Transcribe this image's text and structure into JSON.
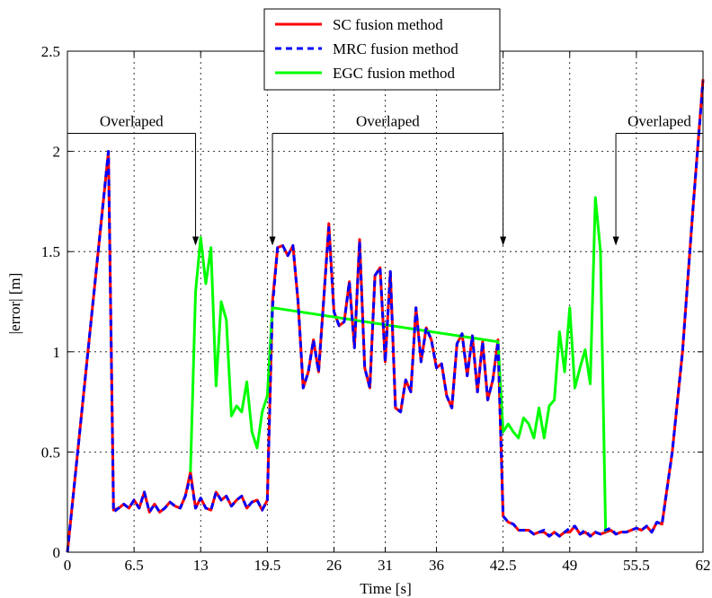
{
  "chart_data": {
    "type": "line",
    "xlabel": "Time [s]",
    "ylabel": "|error| [m]",
    "xlim": [
      0,
      62
    ],
    "ylim": [
      0,
      2.5
    ],
    "xticks": [
      0,
      6.5,
      13,
      19.5,
      26,
      31,
      36,
      42.5,
      49,
      55.5,
      62
    ],
    "xtick_labels": [
      "0",
      "6.5",
      "13",
      "19.5",
      "26",
      "31",
      "36",
      "42.5",
      "49",
      "55.5",
      "62"
    ],
    "yticks": [
      0,
      0.5,
      1,
      1.5,
      2,
      2.5
    ],
    "ytick_labels": [
      "0",
      "0.5",
      "1",
      "1.5",
      "2",
      "2.5"
    ],
    "grid": true,
    "legend_position": "top-center",
    "annotations": [
      {
        "text": "Overlaped",
        "x_start": 0,
        "x_end": 12.5,
        "y": 2.09,
        "arrow_tip_y": 1.53
      },
      {
        "text": "Overlaped",
        "x_start": 20,
        "x_end": 42.5,
        "y": 2.09,
        "arrow_tip_y": 1.53
      },
      {
        "text": "Overlaped",
        "x_start": 53.5,
        "x_end": 62,
        "y": 2.09,
        "arrow_tip_y": 1.53
      }
    ],
    "series": [
      {
        "name": "SC fusion method",
        "color": "#ff0000",
        "style": "solid",
        "points": [
          [
            0,
            0
          ],
          [
            4,
            2
          ],
          [
            4.5,
            0.21
          ],
          [
            5,
            0.22
          ],
          [
            5.5,
            0.24
          ],
          [
            6,
            0.22
          ],
          [
            6.5,
            0.26
          ],
          [
            7,
            0.22
          ],
          [
            7.5,
            0.3
          ],
          [
            8,
            0.2
          ],
          [
            8.5,
            0.24
          ],
          [
            9,
            0.2
          ],
          [
            9.5,
            0.22
          ],
          [
            10,
            0.25
          ],
          [
            10.5,
            0.23
          ],
          [
            11,
            0.22
          ],
          [
            11.5,
            0.28
          ],
          [
            12,
            0.4
          ],
          [
            12.5,
            0.22
          ],
          [
            13,
            0.27
          ],
          [
            13.5,
            0.22
          ],
          [
            14,
            0.21
          ],
          [
            14.5,
            0.3
          ],
          [
            15,
            0.26
          ],
          [
            15.5,
            0.28
          ],
          [
            16,
            0.23
          ],
          [
            16.5,
            0.26
          ],
          [
            17,
            0.28
          ],
          [
            17.5,
            0.22
          ],
          [
            18,
            0.25
          ],
          [
            18.5,
            0.26
          ],
          [
            19,
            0.21
          ],
          [
            19.5,
            0.26
          ],
          [
            20,
            1.25
          ],
          [
            20.5,
            1.52
          ],
          [
            21,
            1.53
          ],
          [
            21.5,
            1.48
          ],
          [
            22,
            1.53
          ],
          [
            22.5,
            1.25
          ],
          [
            23,
            0.82
          ],
          [
            23.5,
            0.9
          ],
          [
            24,
            1.06
          ],
          [
            24.5,
            0.9
          ],
          [
            25,
            1.26
          ],
          [
            25.5,
            1.64
          ],
          [
            26,
            1.2
          ],
          [
            26.5,
            1.13
          ],
          [
            27,
            1.15
          ],
          [
            27.5,
            1.35
          ],
          [
            28,
            1.02
          ],
          [
            28.5,
            1.56
          ],
          [
            29,
            0.92
          ],
          [
            29.5,
            0.82
          ],
          [
            30,
            1.38
          ],
          [
            30.5,
            1.42
          ],
          [
            31,
            0.95
          ],
          [
            31.5,
            1.4
          ],
          [
            32,
            0.72
          ],
          [
            32.5,
            0.7
          ],
          [
            33,
            0.86
          ],
          [
            33.5,
            0.8
          ],
          [
            34,
            1.22
          ],
          [
            34.5,
            0.95
          ],
          [
            35,
            1.12
          ],
          [
            35.5,
            1.06
          ],
          [
            36,
            0.92
          ],
          [
            36.5,
            0.94
          ],
          [
            37,
            0.78
          ],
          [
            37.5,
            0.72
          ],
          [
            38,
            1.04
          ],
          [
            38.5,
            1.09
          ],
          [
            39,
            0.88
          ],
          [
            39.5,
            1.08
          ],
          [
            40,
            0.8
          ],
          [
            40.5,
            1.05
          ],
          [
            41,
            0.76
          ],
          [
            41.5,
            0.86
          ],
          [
            42,
            1.06
          ],
          [
            42.5,
            0.18
          ],
          [
            43,
            0.15
          ],
          [
            43.5,
            0.14
          ],
          [
            44,
            0.11
          ],
          [
            44.5,
            0.11
          ],
          [
            45,
            0.11
          ],
          [
            45.5,
            0.09
          ],
          [
            46,
            0.1
          ],
          [
            46.5,
            0.1
          ],
          [
            47,
            0.08
          ],
          [
            47.5,
            0.1
          ],
          [
            48,
            0.08
          ],
          [
            48.5,
            0.1
          ],
          [
            49,
            0.1
          ],
          [
            49.5,
            0.13
          ],
          [
            50,
            0.09
          ],
          [
            50.5,
            0.1
          ],
          [
            51,
            0.08
          ],
          [
            51.5,
            0.1
          ],
          [
            52,
            0.09
          ],
          [
            52.5,
            0.1
          ],
          [
            53,
            0.11
          ],
          [
            53.5,
            0.09
          ],
          [
            54,
            0.1
          ],
          [
            54.5,
            0.1
          ],
          [
            55,
            0.11
          ],
          [
            55.5,
            0.12
          ],
          [
            56,
            0.11
          ],
          [
            56.5,
            0.13
          ],
          [
            57,
            0.1
          ],
          [
            57.5,
            0.15
          ],
          [
            58,
            0.14
          ],
          [
            59,
            0.5
          ],
          [
            60,
            1.0
          ],
          [
            61,
            1.7
          ],
          [
            62,
            2.36
          ]
        ]
      },
      {
        "name": "MRC fusion method",
        "color": "#0000ff",
        "style": "dashed",
        "points": [
          [
            0,
            0
          ],
          [
            4,
            2
          ],
          [
            4.5,
            0.2
          ],
          [
            5,
            0.22
          ],
          [
            5.5,
            0.24
          ],
          [
            6,
            0.22
          ],
          [
            6.5,
            0.26
          ],
          [
            7,
            0.22
          ],
          [
            7.5,
            0.3
          ],
          [
            8,
            0.2
          ],
          [
            8.5,
            0.24
          ],
          [
            9,
            0.2
          ],
          [
            9.5,
            0.22
          ],
          [
            10,
            0.25
          ],
          [
            10.5,
            0.23
          ],
          [
            11,
            0.22
          ],
          [
            11.5,
            0.28
          ],
          [
            12,
            0.38
          ],
          [
            12.5,
            0.22
          ],
          [
            13,
            0.27
          ],
          [
            13.5,
            0.22
          ],
          [
            14,
            0.21
          ],
          [
            14.5,
            0.3
          ],
          [
            15,
            0.26
          ],
          [
            15.5,
            0.28
          ],
          [
            16,
            0.23
          ],
          [
            16.5,
            0.26
          ],
          [
            17,
            0.28
          ],
          [
            17.5,
            0.22
          ],
          [
            18,
            0.25
          ],
          [
            18.5,
            0.26
          ],
          [
            19,
            0.21
          ],
          [
            19.5,
            0.26
          ],
          [
            20,
            1.22
          ],
          [
            20.5,
            1.52
          ],
          [
            21,
            1.53
          ],
          [
            21.5,
            1.48
          ],
          [
            22,
            1.53
          ],
          [
            22.5,
            1.25
          ],
          [
            23,
            0.82
          ],
          [
            23.5,
            0.9
          ],
          [
            24,
            1.06
          ],
          [
            24.5,
            0.9
          ],
          [
            25,
            1.26
          ],
          [
            25.5,
            1.62
          ],
          [
            26,
            1.2
          ],
          [
            26.5,
            1.13
          ],
          [
            27,
            1.15
          ],
          [
            27.5,
            1.35
          ],
          [
            28,
            1.02
          ],
          [
            28.5,
            1.55
          ],
          [
            29,
            0.92
          ],
          [
            29.5,
            0.82
          ],
          [
            30,
            1.38
          ],
          [
            30.5,
            1.42
          ],
          [
            31,
            0.95
          ],
          [
            31.5,
            1.4
          ],
          [
            32,
            0.72
          ],
          [
            32.5,
            0.7
          ],
          [
            33,
            0.86
          ],
          [
            33.5,
            0.8
          ],
          [
            34,
            1.22
          ],
          [
            34.5,
            0.95
          ],
          [
            35,
            1.12
          ],
          [
            35.5,
            1.06
          ],
          [
            36,
            0.92
          ],
          [
            36.5,
            0.94
          ],
          [
            37,
            0.78
          ],
          [
            37.5,
            0.72
          ],
          [
            38,
            1.04
          ],
          [
            38.5,
            1.09
          ],
          [
            39,
            0.88
          ],
          [
            39.5,
            1.08
          ],
          [
            40,
            0.8
          ],
          [
            40.5,
            1.05
          ],
          [
            41,
            0.76
          ],
          [
            41.5,
            0.86
          ],
          [
            42,
            1.05
          ],
          [
            42.5,
            0.18
          ],
          [
            43,
            0.15
          ],
          [
            43.5,
            0.14
          ],
          [
            44,
            0.11
          ],
          [
            44.5,
            0.11
          ],
          [
            45,
            0.11
          ],
          [
            45.5,
            0.09
          ],
          [
            46,
            0.1
          ],
          [
            46.5,
            0.11
          ],
          [
            47,
            0.08
          ],
          [
            47.5,
            0.1
          ],
          [
            48,
            0.08
          ],
          [
            48.5,
            0.1
          ],
          [
            49,
            0.12
          ],
          [
            49.5,
            0.13
          ],
          [
            50,
            0.09
          ],
          [
            50.5,
            0.11
          ],
          [
            51,
            0.08
          ],
          [
            51.5,
            0.1
          ],
          [
            52,
            0.09
          ],
          [
            52.5,
            0.11
          ],
          [
            53,
            0.12
          ],
          [
            53.5,
            0.09
          ],
          [
            54,
            0.1
          ],
          [
            54.5,
            0.1
          ],
          [
            55,
            0.11
          ],
          [
            55.5,
            0.12
          ],
          [
            56,
            0.11
          ],
          [
            56.5,
            0.13
          ],
          [
            57,
            0.1
          ],
          [
            57.5,
            0.15
          ],
          [
            58,
            0.14
          ],
          [
            59,
            0.5
          ],
          [
            60,
            1.0
          ],
          [
            61,
            1.7
          ],
          [
            62,
            2.35
          ]
        ]
      },
      {
        "name": "EGC fusion method",
        "color": "#00ff00",
        "style": "solid",
        "points": [
          [
            12,
            0.4
          ],
          [
            12.5,
            1.3
          ],
          [
            13,
            1.57
          ],
          [
            13.5,
            1.34
          ],
          [
            14,
            1.52
          ],
          [
            14.5,
            0.83
          ],
          [
            15,
            1.25
          ],
          [
            15.5,
            1.16
          ],
          [
            16,
            0.68
          ],
          [
            16.5,
            0.73
          ],
          [
            17,
            0.7
          ],
          [
            17.5,
            0.85
          ],
          [
            18,
            0.6
          ],
          [
            18.5,
            0.52
          ],
          [
            19,
            0.7
          ],
          [
            19.5,
            0.78
          ],
          [
            20,
            1.22
          ],
          [
            42,
            1.05
          ],
          [
            42.5,
            0.6
          ],
          [
            43,
            0.64
          ],
          [
            43.5,
            0.6
          ],
          [
            44,
            0.57
          ],
          [
            44.5,
            0.67
          ],
          [
            45,
            0.64
          ],
          [
            45.5,
            0.57
          ],
          [
            46,
            0.72
          ],
          [
            46.5,
            0.57
          ],
          [
            47,
            0.73
          ],
          [
            47.5,
            0.76
          ],
          [
            48,
            1.1
          ],
          [
            48.5,
            0.9
          ],
          [
            49,
            1.22
          ],
          [
            49.5,
            0.82
          ],
          [
            50,
            0.92
          ],
          [
            50.5,
            1.01
          ],
          [
            51,
            0.84
          ],
          [
            51.5,
            1.77
          ],
          [
            52,
            1.5
          ],
          [
            52.5,
            0.1
          ]
        ]
      }
    ]
  }
}
